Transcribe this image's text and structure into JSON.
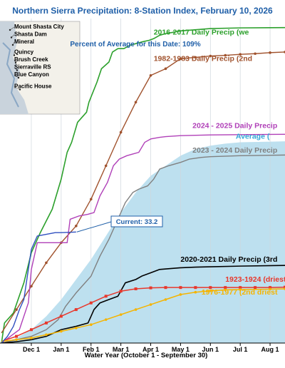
{
  "header": {
    "title": "Northern Sierra Precipitation: 8-Station Index, February 10, 2026",
    "percent_of_average": "Percent of Average for this Date: 109%"
  },
  "stations": [
    "Mount Shasta City",
    "Shasta Dam",
    "Mineral",
    "Quincy",
    "Brush Creek",
    "Sierraville RS",
    "Blue Canyon",
    "Pacific House"
  ],
  "callout": "Current: 33.2",
  "chart_data": {
    "type": "line",
    "xlabel": "Water Year (October 1 - September 30)",
    "x_ticks": [
      "Dec 1",
      "Jan 1",
      "Feb 1",
      "Mar 1",
      "Apr 1",
      "May 1",
      "Jun 1",
      "Jul 1",
      "Aug 1"
    ],
    "x_tick_months": [
      2,
      3,
      4,
      5,
      6,
      7,
      8,
      9,
      10
    ],
    "x_range": [
      0.95,
      10.5
    ],
    "y_range": [
      0,
      97
    ],
    "series": [
      {
        "name": "2016-2017 Daily Precip (we",
        "label": "2016-2017 Daily Precip (we",
        "color": "#2ca02c",
        "width": 1.6,
        "points": [
          [
            1,
            0
          ],
          [
            1.1,
            6
          ],
          [
            1.4,
            9
          ],
          [
            1.75,
            18
          ],
          [
            2,
            27
          ],
          [
            2.3,
            33
          ],
          [
            2.7,
            40
          ],
          [
            3,
            49
          ],
          [
            3.2,
            57
          ],
          [
            3.35,
            60
          ],
          [
            3.55,
            66
          ],
          [
            3.85,
            69
          ],
          [
            3.93,
            72
          ],
          [
            4.2,
            78
          ],
          [
            4.35,
            82
          ],
          [
            4.6,
            84
          ],
          [
            4.72,
            87
          ],
          [
            4.9,
            88
          ],
          [
            5.1,
            88
          ],
          [
            5.3,
            89
          ],
          [
            5.5,
            89.5
          ],
          [
            5.7,
            90
          ],
          [
            5.95,
            90.5
          ],
          [
            6.1,
            91
          ],
          [
            6.3,
            92
          ],
          [
            6.5,
            92.5
          ],
          [
            7,
            93.3
          ],
          [
            8,
            94
          ],
          [
            9,
            94.2
          ],
          [
            10.5,
            94.3
          ]
        ]
      },
      {
        "name": "1982-1983 Daily Precip (2nd",
        "label": "1982-1983 Daily Precip (2nd",
        "color": "#a0522d",
        "width": 1.4,
        "marker": "dot",
        "points": [
          [
            1,
            3
          ],
          [
            1.5,
            10
          ],
          [
            2,
            17
          ],
          [
            2.5,
            24
          ],
          [
            3,
            30
          ],
          [
            3.5,
            35
          ],
          [
            4,
            43
          ],
          [
            4.5,
            53
          ],
          [
            5,
            63
          ],
          [
            5.5,
            72
          ],
          [
            6,
            80
          ],
          [
            6.5,
            82
          ],
          [
            7,
            85
          ],
          [
            7.5,
            85.4
          ],
          [
            8,
            85.8
          ],
          [
            8.5,
            86
          ],
          [
            9,
            86.3
          ],
          [
            9.5,
            86.5
          ],
          [
            10,
            86.8
          ],
          [
            10.5,
            87
          ]
        ]
      },
      {
        "name": "2024 - 2025 Daily Precip",
        "label": "2024 - 2025 Daily Precip",
        "color": "#b040b8",
        "width": 1.4,
        "points": [
          [
            1,
            0
          ],
          [
            1.3,
            2
          ],
          [
            1.6,
            4
          ],
          [
            1.9,
            12
          ],
          [
            2,
            22
          ],
          [
            2.2,
            30
          ],
          [
            2.5,
            30
          ],
          [
            3,
            30
          ],
          [
            3.2,
            30
          ],
          [
            3.3,
            37
          ],
          [
            3.6,
            38
          ],
          [
            3.9,
            38.5
          ],
          [
            4.1,
            39
          ],
          [
            4.3,
            44
          ],
          [
            4.55,
            48
          ],
          [
            4.75,
            53
          ],
          [
            4.95,
            55
          ],
          [
            5.2,
            56
          ],
          [
            5.4,
            56.5
          ],
          [
            5.6,
            57
          ],
          [
            5.8,
            60
          ],
          [
            6,
            61
          ],
          [
            6.3,
            61.5
          ],
          [
            6.5,
            61.7
          ],
          [
            7,
            62
          ],
          [
            8,
            62.2
          ],
          [
            9,
            62.3
          ],
          [
            10.5,
            62.4
          ]
        ]
      },
      {
        "name": "2023 - 2024 Daily Precip",
        "label": "2023 - 2024 Daily Precip",
        "color": "#808080",
        "width": 1.4,
        "points": [
          [
            1,
            0
          ],
          [
            1.5,
            1
          ],
          [
            2,
            2
          ],
          [
            2.5,
            4
          ],
          [
            2.9,
            7
          ],
          [
            3.15,
            11
          ],
          [
            3.5,
            15
          ],
          [
            4,
            20
          ],
          [
            4.3,
            26
          ],
          [
            4.6,
            31
          ],
          [
            4.85,
            36
          ],
          [
            5.15,
            42
          ],
          [
            5.4,
            45
          ],
          [
            5.6,
            46
          ],
          [
            5.9,
            47
          ],
          [
            6.1,
            49
          ],
          [
            6.3,
            52
          ],
          [
            6.6,
            53
          ],
          [
            7,
            54
          ],
          [
            7.3,
            55
          ],
          [
            7.7,
            55.5
          ],
          [
            8,
            55.7
          ],
          [
            9,
            56
          ],
          [
            10.5,
            56.2
          ]
        ]
      },
      {
        "name": "2020-2021 Daily Precip (3rd",
        "label": "2020-2021 Daily Precip (3rd",
        "color": "#000000",
        "width": 1.6,
        "points": [
          [
            1,
            0
          ],
          [
            1.5,
            0.4
          ],
          [
            2,
            1
          ],
          [
            2.5,
            2
          ],
          [
            3,
            4
          ],
          [
            3.5,
            5
          ],
          [
            3.9,
            6
          ],
          [
            4.1,
            10
          ],
          [
            4.3,
            12
          ],
          [
            4.6,
            13
          ],
          [
            4.9,
            14
          ],
          [
            5.15,
            18
          ],
          [
            5.5,
            19
          ],
          [
            5.7,
            20
          ],
          [
            6,
            21
          ],
          [
            6.3,
            22
          ],
          [
            6.7,
            22.3
          ],
          [
            7,
            22.5
          ],
          [
            7.5,
            22.7
          ],
          [
            8,
            22.8
          ],
          [
            9,
            23
          ],
          [
            10.5,
            23.2
          ]
        ]
      },
      {
        "name": "1923-1924 (driest)",
        "label": "1923-1924 (driest)",
        "color": "#e8382c",
        "width": 1.5,
        "marker": "square",
        "points": [
          [
            1,
            0.5
          ],
          [
            1.5,
            2
          ],
          [
            2,
            4
          ],
          [
            2.5,
            6
          ],
          [
            3,
            8
          ],
          [
            3.5,
            10
          ],
          [
            4,
            12
          ],
          [
            4.5,
            14
          ],
          [
            5,
            15.5
          ],
          [
            5.5,
            16.2
          ],
          [
            6,
            16.5
          ],
          [
            6.5,
            16.6
          ],
          [
            7,
            16.6
          ],
          [
            7.5,
            16.6
          ],
          [
            8,
            16.6
          ],
          [
            8.5,
            16.6
          ],
          [
            9,
            16.6
          ],
          [
            9.5,
            16.6
          ],
          [
            10,
            16.6
          ],
          [
            10.5,
            16.7
          ]
        ]
      },
      {
        "name": "1976-1977 (2nd driest",
        "label": "1976-1977 (2nd driest",
        "color": "#f5b400",
        "width": 1.5,
        "marker": "dot",
        "points": [
          [
            1,
            0.5
          ],
          [
            1.5,
            1
          ],
          [
            2,
            1.5
          ],
          [
            2.5,
            2.5
          ],
          [
            3,
            3.5
          ],
          [
            3.5,
            4.5
          ],
          [
            4,
            5.5
          ],
          [
            4.5,
            7
          ],
          [
            5,
            8.5
          ],
          [
            5.5,
            10
          ],
          [
            6,
            11.5
          ],
          [
            6.5,
            13
          ],
          [
            7,
            14.5
          ],
          [
            7.5,
            15.2
          ],
          [
            8,
            15.6
          ],
          [
            8.5,
            15.9
          ],
          [
            9,
            16
          ],
          [
            10,
            16.1
          ],
          [
            10.5,
            16.2
          ]
        ]
      },
      {
        "name": "Current",
        "label": "",
        "color": "#3050c0",
        "width": 1.4,
        "points": [
          [
            1,
            0
          ],
          [
            1.2,
            2
          ],
          [
            1.4,
            5
          ],
          [
            1.6,
            10
          ],
          [
            1.75,
            13
          ],
          [
            2,
            28
          ],
          [
            2.2,
            32
          ],
          [
            2.5,
            32.5
          ],
          [
            2.8,
            33
          ],
          [
            3,
            33
          ],
          [
            3.3,
            33.1
          ],
          [
            3.5,
            33.2
          ]
        ]
      }
    ],
    "average_area": {
      "name": "Average (",
      "color": "#bde0ef",
      "points": [
        [
          1,
          0
        ],
        [
          1.5,
          1.5
        ],
        [
          2,
          4
        ],
        [
          2.5,
          8
        ],
        [
          3,
          13
        ],
        [
          3.5,
          19
        ],
        [
          4,
          25
        ],
        [
          4.5,
          32
        ],
        [
          5,
          39
        ],
        [
          5.5,
          45
        ],
        [
          6,
          50
        ],
        [
          6.5,
          53
        ],
        [
          7,
          56
        ],
        [
          7.5,
          58
        ],
        [
          8,
          59
        ],
        [
          8.5,
          59.6
        ],
        [
          9,
          60
        ],
        [
          10,
          60.2
        ],
        [
          10.5,
          60.3
        ]
      ]
    },
    "series_labels": [
      {
        "text": "2016-2017 Daily Precip (we",
        "x": 6.1,
        "y": 92.2,
        "color": "#2ca02c"
      },
      {
        "text": "1982-1983 Daily Precip (2nd",
        "x": 6.1,
        "y": 84.3,
        "color": "#a0522d"
      },
      {
        "text": "2024 - 2025 Daily Precip",
        "x": 7.4,
        "y": 64.3,
        "color": "#b040b8"
      },
      {
        "text": "Average (",
        "x": 8.85,
        "y": 61.1,
        "color": "#32a6d8"
      },
      {
        "text": "2023 - 2024 Daily Precip",
        "x": 7.4,
        "y": 56.9,
        "color": "#808080"
      },
      {
        "text": "2020-2021 Daily Precip (3rd",
        "x": 7.0,
        "y": 24.3,
        "color": "#000000"
      },
      {
        "text": "1923-1924 (driest)",
        "x": 8.5,
        "y": 18.3,
        "color": "#e8382c"
      },
      {
        "text": "1976-1977 (2nd driest",
        "x": 7.7,
        "y": 14.5,
        "color": "#f5b400"
      }
    ]
  }
}
